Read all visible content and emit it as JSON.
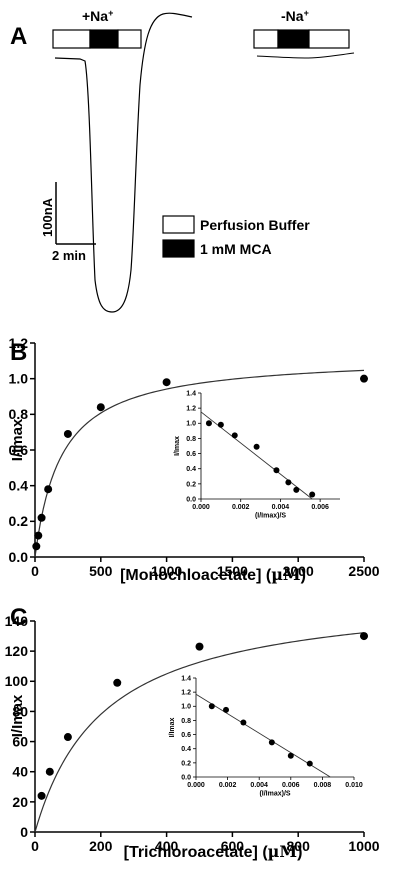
{
  "panel_a": {
    "letter": "A",
    "label_plus": "+Na",
    "label_minus": "-Na",
    "superscript": "+",
    "scale_current": "100nA",
    "scale_time": "2 min",
    "legend": [
      {
        "label": "Perfusion Buffer",
        "fill": "#ffffff"
      },
      {
        "label": "1 mM MCA",
        "fill": "#000000"
      }
    ]
  },
  "chart_data": [
    {
      "type": "scatter",
      "letter": "B",
      "xlabel_prefix": "[Monochloacetate] (",
      "xlabel_unit": "µM",
      "xlabel_suffix": ")",
      "ylabel": "I/Imax",
      "xlim": [
        0,
        2500
      ],
      "ylim": [
        0,
        1.2
      ],
      "xticks": [
        0,
        500,
        1000,
        1500,
        2000,
        2500
      ],
      "yticks": [
        0.0,
        0.2,
        0.4,
        0.6,
        0.8,
        1.0,
        1.2
      ],
      "xtick_labels": [
        "0",
        "500",
        "1000",
        "1500",
        "2000",
        "2500"
      ],
      "ytick_labels": [
        "0.0",
        "0.2",
        "0.4",
        "0.6",
        "0.8",
        "1.0",
        "1.2"
      ],
      "points": [
        [
          10,
          0.06
        ],
        [
          25,
          0.12
        ],
        [
          50,
          0.22
        ],
        [
          100,
          0.38
        ],
        [
          250,
          0.69
        ],
        [
          500,
          0.84
        ],
        [
          1000,
          0.98
        ],
        [
          2500,
          1.0
        ]
      ],
      "fit": {
        "vmax": 1.13,
        "km": 200
      },
      "inset": {
        "type": "scatter",
        "xlabel": "(I/Imax)/S",
        "ylabel": "I/Imax",
        "xlim": [
          0,
          0.007
        ],
        "ylim": [
          0,
          1.4
        ],
        "xticks": [
          0,
          0.002,
          0.004,
          0.006
        ],
        "yticks": [
          0.0,
          0.2,
          0.4,
          0.6,
          0.8,
          1.0,
          1.2,
          1.4
        ],
        "xtick_labels": [
          "0.000",
          "0.002",
          "0.004",
          "0.006"
        ],
        "ytick_labels": [
          "0.0",
          "0.2",
          "0.4",
          "0.6",
          "0.8",
          "1.0",
          "1.2",
          "1.4"
        ],
        "points": [
          [
            0.0004,
            1.0
          ],
          [
            0.001,
            0.98
          ],
          [
            0.0017,
            0.84
          ],
          [
            0.0028,
            0.69
          ],
          [
            0.0038,
            0.38
          ],
          [
            0.0044,
            0.22
          ],
          [
            0.0048,
            0.12
          ],
          [
            0.0056,
            0.06
          ]
        ],
        "line": [
          [
            0,
            1.15
          ],
          [
            0.0056,
            0.0
          ]
        ]
      }
    },
    {
      "type": "scatter",
      "letter": "C",
      "xlabel_prefix": "[Trichloroacetate] (",
      "xlabel_unit": "µM",
      "xlabel_suffix": ")",
      "ylabel": "I/Imax",
      "xlim": [
        0,
        1000
      ],
      "ylim": [
        0,
        140
      ],
      "xticks": [
        0,
        200,
        400,
        600,
        800,
        1000
      ],
      "yticks": [
        0,
        20,
        40,
        60,
        80,
        100,
        120,
        140
      ],
      "xtick_labels": [
        "0",
        "200",
        "400",
        "600",
        "800",
        "1000"
      ],
      "ytick_labels": [
        "0",
        "20",
        "40",
        "60",
        "80",
        "100",
        "120",
        "140"
      ],
      "points": [
        [
          20,
          24
        ],
        [
          45,
          40
        ],
        [
          100,
          63
        ],
        [
          250,
          99
        ],
        [
          500,
          123
        ],
        [
          1000,
          130
        ]
      ],
      "fit": {
        "vmax": 160,
        "km": 210
      },
      "inset": {
        "type": "scatter",
        "xlabel": "(I/Imax)/S",
        "ylabel": "I/Imax",
        "xlim": [
          0,
          0.01
        ],
        "ylim": [
          0,
          1.4
        ],
        "xticks": [
          0,
          0.002,
          0.004,
          0.006,
          0.008,
          0.01
        ],
        "yticks": [
          0.0,
          0.2,
          0.4,
          0.6,
          0.8,
          1.0,
          1.2,
          1.4
        ],
        "xtick_labels": [
          "0.000",
          "0.002",
          "0.004",
          "0.006",
          "0.008",
          "0.010"
        ],
        "ytick_labels": [
          "0.0",
          "0.2",
          "0.4",
          "0.6",
          "0.8",
          "1.0",
          "1.2",
          "1.4"
        ],
        "points": [
          [
            0.001,
            1.0
          ],
          [
            0.0019,
            0.95
          ],
          [
            0.003,
            0.77
          ],
          [
            0.0048,
            0.49
          ],
          [
            0.006,
            0.3
          ],
          [
            0.0072,
            0.19
          ]
        ],
        "line": [
          [
            0,
            1.17
          ],
          [
            0.0085,
            0.0
          ]
        ]
      }
    }
  ]
}
